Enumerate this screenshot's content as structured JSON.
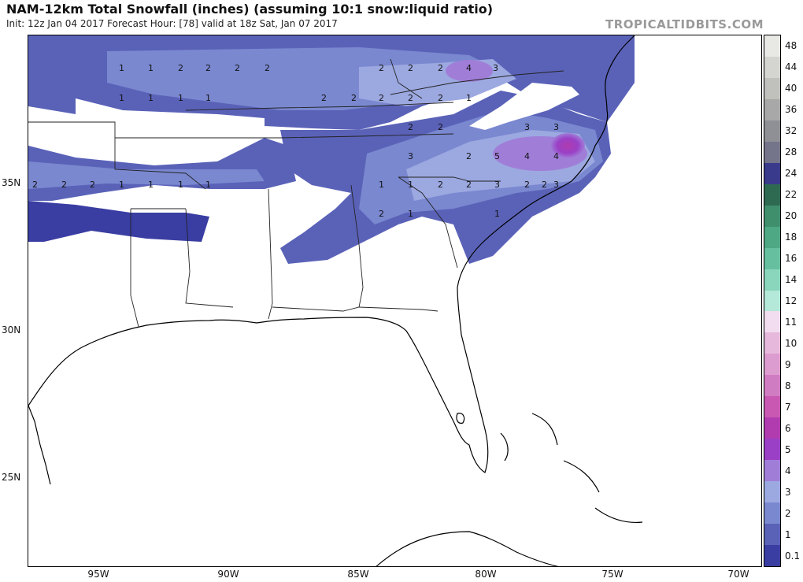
{
  "title": "NAM-12km Total Snowfall (inches) (assuming 10:1 snow:liquid ratio)",
  "subtitle": "Init: 12z Jan 04 2017   Forecast Hour: [78]   valid at 18z Sat, Jan 07 2017",
  "credit": "TROPICALTIDBITS.COM",
  "lat_labels": [
    "35N",
    "30N",
    "25N"
  ],
  "lon_labels": [
    "95W",
    "90W",
    "85W",
    "80W",
    "75W",
    "70W"
  ],
  "colorbar": {
    "labels": [
      "48",
      "44",
      "40",
      "36",
      "32",
      "28",
      "24",
      "22",
      "20",
      "18",
      "16",
      "14",
      "12",
      "11",
      "10",
      "9",
      "8",
      "7",
      "6",
      "5",
      "4",
      "3",
      "2",
      "1",
      "0.1"
    ],
    "colors": [
      "#e8e8e4",
      "#d4d4d0",
      "#c0c0bc",
      "#a8a8a8",
      "#8f8f96",
      "#74748a",
      "#3a3a8c",
      "#2e6a52",
      "#3f8f6c",
      "#4ea884",
      "#66c0a0",
      "#8ad6bc",
      "#b4e8d8",
      "#f2dcef",
      "#e6b8dc",
      "#dc9cd0",
      "#d07cc2",
      "#c858b2",
      "#b03cb0",
      "#9a40c6",
      "#a07ed8",
      "#9ca8e0",
      "#7a88d0",
      "#5a62b8",
      "#3a3ea2"
    ]
  },
  "contour_labels": [
    "1",
    "1",
    "2",
    "2",
    "2",
    "2",
    "2",
    "2",
    "2",
    "4",
    "3",
    "1",
    "1",
    "1",
    "1",
    "2",
    "2",
    "2",
    "2",
    "2",
    "1",
    "2",
    "2",
    "3",
    "3",
    "3",
    "2",
    "5",
    "4",
    "4",
    "2",
    "2",
    "2",
    "1",
    "1",
    "1",
    "1",
    "1",
    "1",
    "2",
    "2",
    "3",
    "2",
    "2",
    "3",
    "2",
    "1",
    "1"
  ]
}
